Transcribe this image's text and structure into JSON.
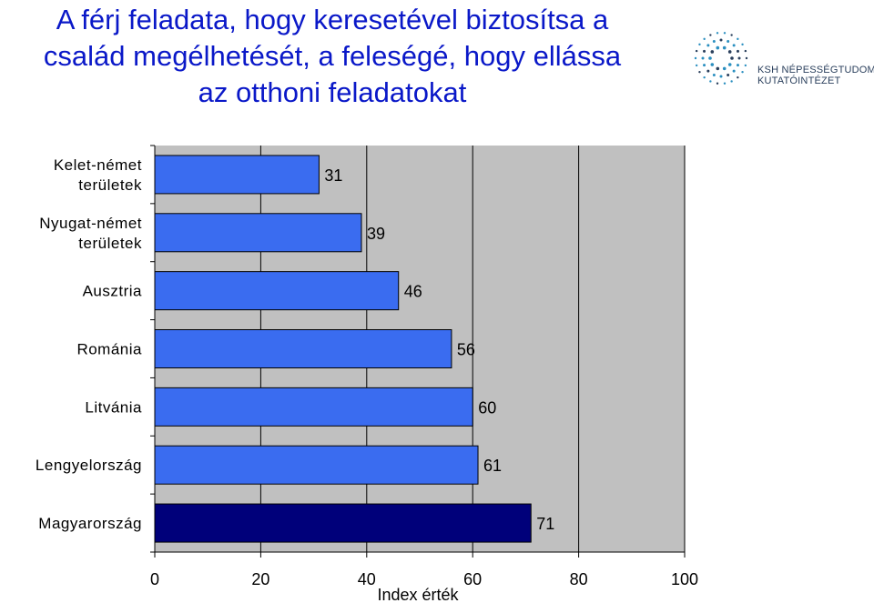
{
  "header": {
    "title_lines": [
      "A férj feladata, hogy keresetével biztosítsa a",
      "család megélhetését, a feleségé, hogy ellássa",
      "az otthoni feladatokat"
    ]
  },
  "logo": {
    "line1": "KSH NÉPESSÉGTUDOMÁNYI",
    "line2": "KUTATÓINTÉZET",
    "color": "#2a8fc0"
  },
  "chart_data": {
    "type": "bar",
    "orientation": "horizontal",
    "categories": [
      [
        "Kelet-német",
        "területek"
      ],
      [
        "Nyugat-német",
        "területek"
      ],
      [
        "Ausztria"
      ],
      [
        "Románia"
      ],
      [
        "Litvánia"
      ],
      [
        "Lengyelország"
      ],
      [
        "Magyarország"
      ]
    ],
    "values": [
      31,
      39,
      46,
      56,
      60,
      61,
      71
    ],
    "data_labels": [
      "31",
      "39",
      "46",
      "56",
      "60",
      "61",
      "71"
    ],
    "xlabel": "Index érték",
    "ylabel": "",
    "xlim": [
      0,
      100
    ],
    "xticks": [
      0,
      20,
      40,
      60,
      80,
      100
    ],
    "grid": true,
    "colors": {
      "bar": "#3a6cf0",
      "highlight_bar": "#00007a",
      "plot_bg": "#c0c0c0",
      "grid": "#000000"
    },
    "highlight_index": 6
  }
}
